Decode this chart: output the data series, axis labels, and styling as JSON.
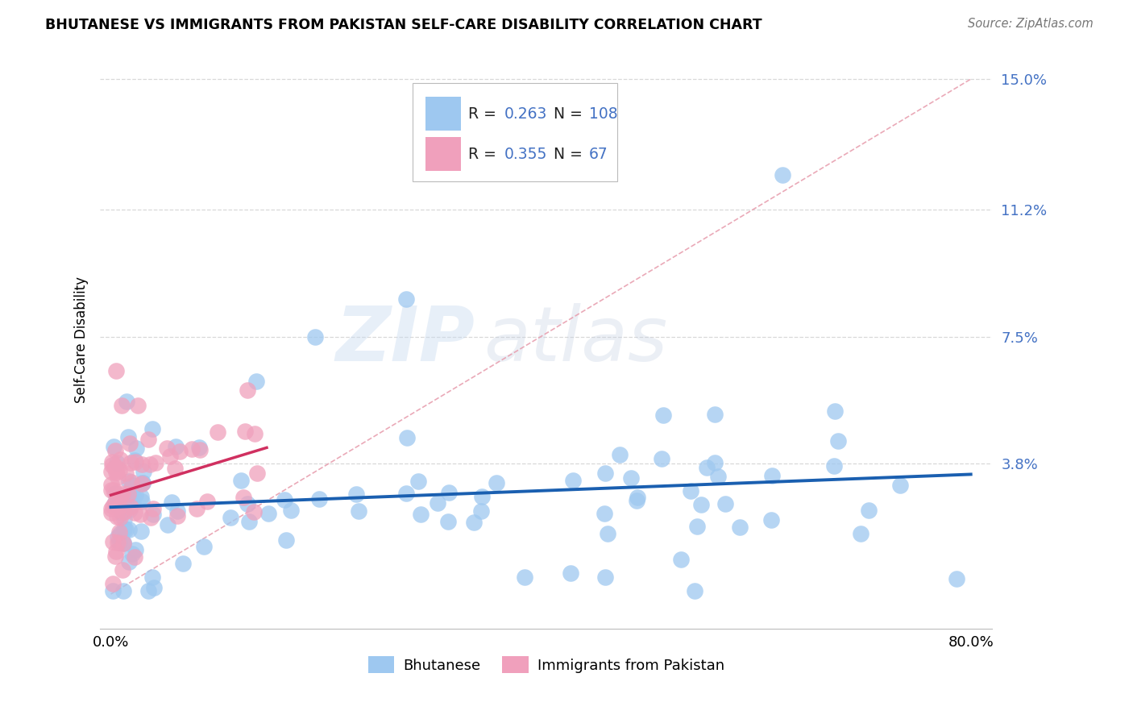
{
  "title": "BHUTANESE VS IMMIGRANTS FROM PAKISTAN SELF-CARE DISABILITY CORRELATION CHART",
  "source": "Source: ZipAtlas.com",
  "ylabel": "Self-Care Disability",
  "xlim": [
    -0.01,
    0.82
  ],
  "ylim": [
    -0.01,
    0.158
  ],
  "yticks": [
    0.038,
    0.075,
    0.112,
    0.15
  ],
  "ytick_labels": [
    "3.8%",
    "7.5%",
    "11.2%",
    "15.0%"
  ],
  "blue_color": "#9ec8f0",
  "pink_color": "#f0a0bc",
  "blue_line_color": "#1a5fb0",
  "pink_line_color": "#d03060",
  "diag_line_color": "#e8a0b0",
  "legend_R_blue": "0.263",
  "legend_N_blue": "108",
  "legend_R_pink": "0.355",
  "legend_N_pink": "67",
  "blue_label": "Bhutanese",
  "pink_label": "Immigrants from Pakistan",
  "watermark_zip": "ZIP",
  "watermark_atlas": "atlas",
  "grid_color": "#d8d8d8",
  "accent_color": "#4472c4"
}
